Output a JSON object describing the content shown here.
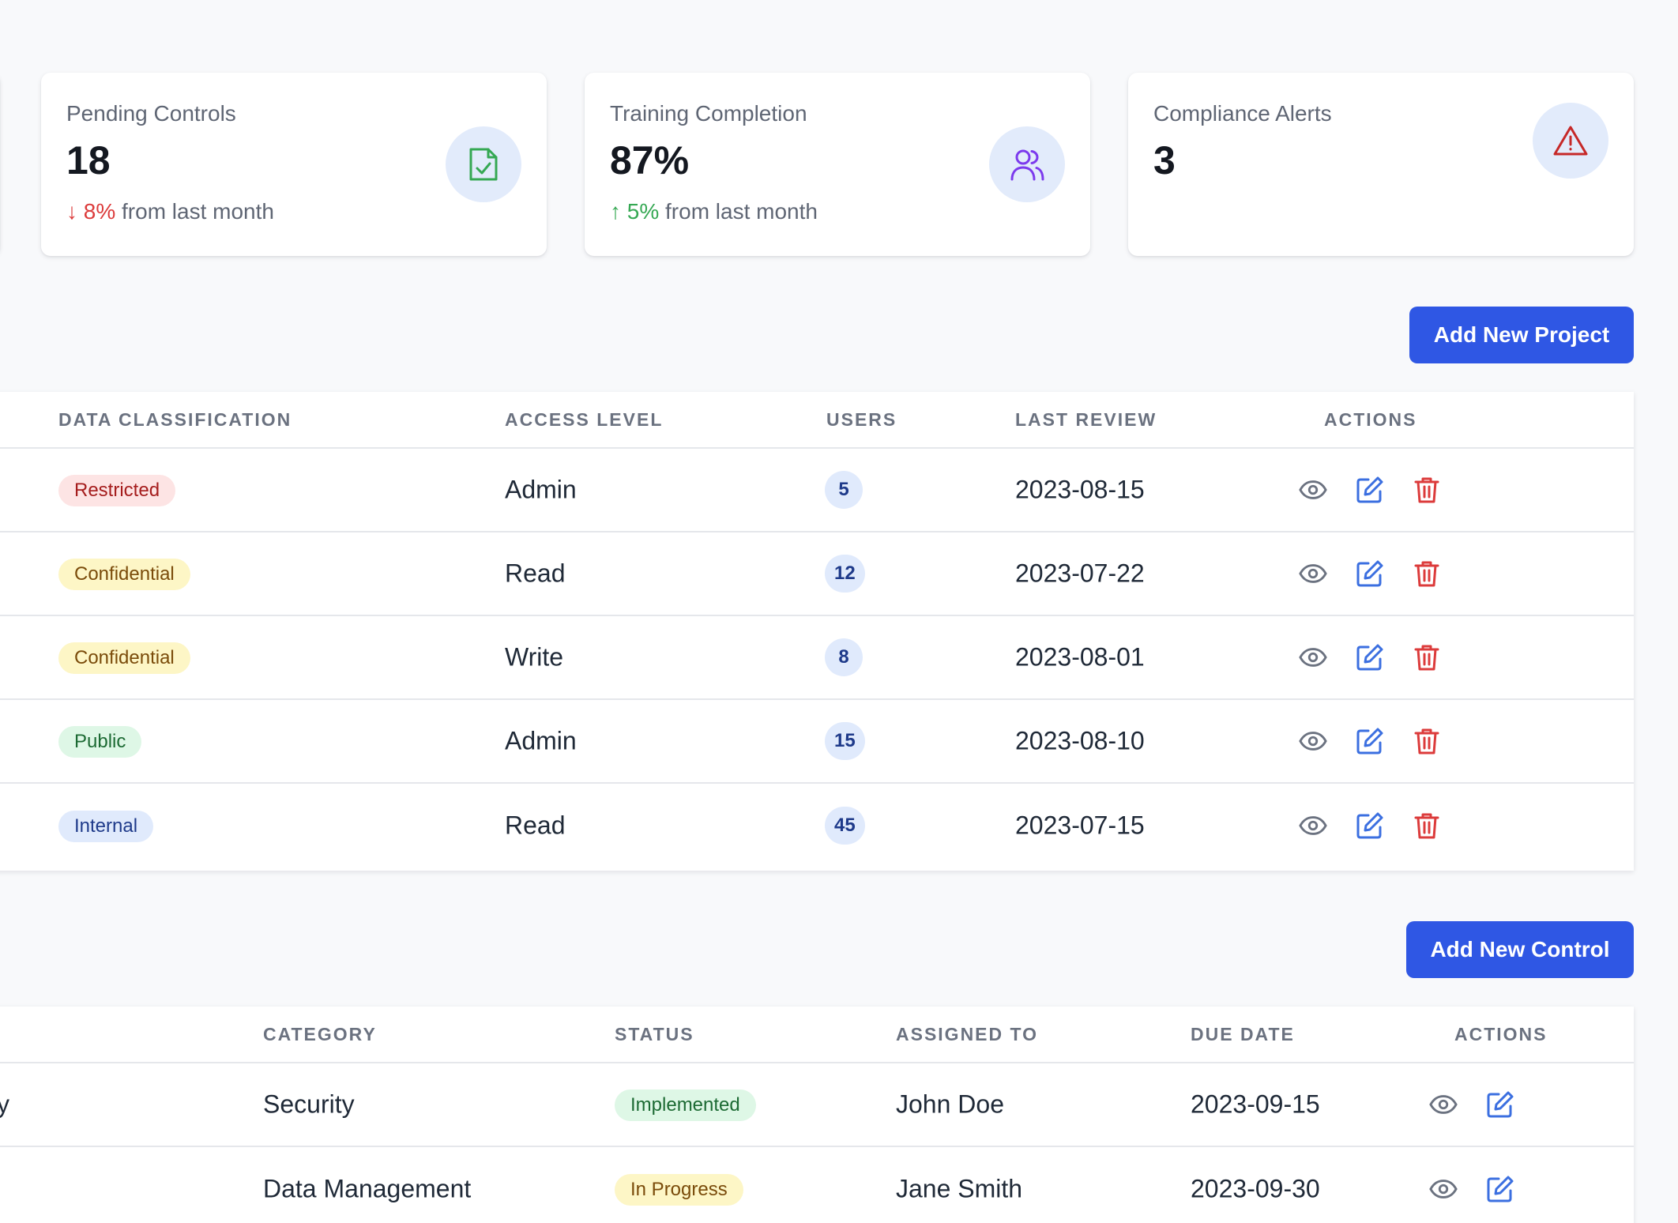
{
  "cards": [
    {
      "label": "Pending Controls",
      "value": "18",
      "trend_arrow": "↓",
      "trend_pct": "8%",
      "trend_text": "from last month",
      "trend_dir": "down",
      "icon": "document-check-icon",
      "icon_bg": "#e2ebfb",
      "icon_color": "#35a853"
    },
    {
      "label": "Training Completion",
      "value": "87%",
      "trend_arrow": "↑",
      "trend_pct": "5%",
      "trend_text": "from last month",
      "trend_dir": "up",
      "icon": "users-icon",
      "icon_bg": "#e2ebfb",
      "icon_color": "#7c3aed"
    },
    {
      "label": "Compliance Alerts",
      "value": "3",
      "icon": "warning-triangle-icon",
      "icon_bg": "#e2ebfb",
      "icon_color": "#c62828"
    }
  ],
  "projects": {
    "add_button": "Add New Project",
    "headers": [
      "DATA CLASSIFICATION",
      "ACCESS LEVEL",
      "USERS",
      "LAST REVIEW",
      "ACTIONS"
    ],
    "rows": [
      {
        "classification": "Restricted",
        "access": "Admin",
        "users": "5",
        "last_review": "2023-08-15"
      },
      {
        "classification": "Confidential",
        "access": "Read",
        "users": "12",
        "last_review": "2023-07-22"
      },
      {
        "classification": "Confidential",
        "access": "Write",
        "users": "8",
        "last_review": "2023-08-01"
      },
      {
        "classification": "Public",
        "access": "Admin",
        "users": "15",
        "last_review": "2023-08-10"
      },
      {
        "classification": "Internal",
        "access": "Read",
        "users": "45",
        "last_review": "2023-07-15"
      }
    ]
  },
  "controls": {
    "add_button": "Add New Control",
    "headers": [
      "CATEGORY",
      "STATUS",
      "ASSIGNED TO",
      "DUE DATE",
      "ACTIONS"
    ],
    "rows": [
      {
        "name_fragment": "y",
        "category": "Security",
        "status": "Implemented",
        "assigned": "John Doe",
        "due": "2023-09-15"
      },
      {
        "name_fragment": "",
        "category": "Data Management",
        "status": "In Progress",
        "assigned": "Jane Smith",
        "due": "2023-09-30"
      }
    ]
  },
  "colors": {
    "primary": "#2f57e4",
    "view_icon": "#6b7280",
    "edit_icon": "#3b6fe0",
    "delete_icon": "#dc3b3b"
  }
}
